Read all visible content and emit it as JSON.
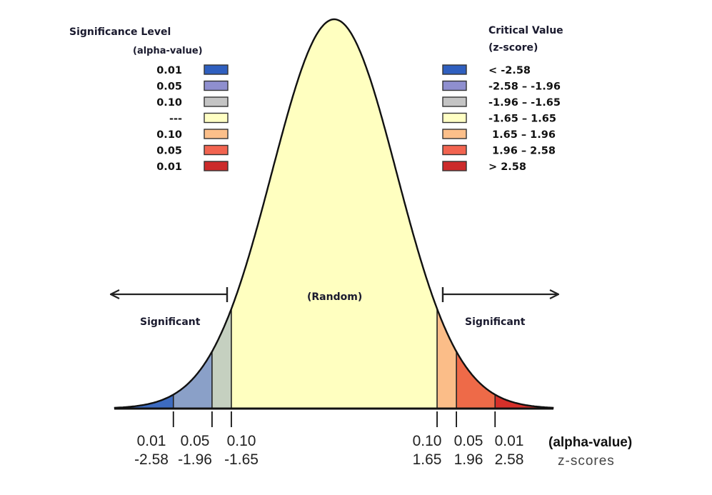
{
  "legend_left": {
    "title": "Significance Level",
    "subtitle": "(alpha-value)",
    "items": [
      {
        "label": "0.01",
        "color": "#2f5fbf"
      },
      {
        "label": "0.05",
        "color": "#8f8fcf"
      },
      {
        "label": "0.10",
        "color": "#c4c4c4"
      },
      {
        "label": "---",
        "color": "#ffffc4"
      },
      {
        "label": "0.10",
        "color": "#fcbf8a"
      },
      {
        "label": "0.05",
        "color": "#f26450"
      },
      {
        "label": "0.01",
        "color": "#cc2a2a"
      }
    ]
  },
  "legend_right": {
    "title": "Critical Value",
    "subtitle": "(z-score)",
    "items": [
      {
        "label": "< -2.58",
        "color": "#2f5fbf"
      },
      {
        "label": "-2.58 – -1.96",
        "color": "#8f8fcf"
      },
      {
        "label": "-1.96 – -1.65",
        "color": "#c4c4c4"
      },
      {
        "label": "-1.65 – 1.65",
        "color": "#ffffc4"
      },
      {
        "label": " 1.65 – 1.96",
        "color": "#fcbf8a"
      },
      {
        "label": " 1.96 – 2.58",
        "color": "#f26450"
      },
      {
        "label": "> 2.58",
        "color": "#cc2a2a"
      }
    ]
  },
  "curve": {
    "z_range": [
      -3.53,
      3.52
    ],
    "regions": [
      {
        "from": -3.53,
        "to": -2.58,
        "color": "#3d6bc0"
      },
      {
        "from": -2.58,
        "to": -1.96,
        "color": "#8aa0c8"
      },
      {
        "from": -1.96,
        "to": -1.65,
        "color": "#c5d0c0"
      },
      {
        "from": -1.65,
        "to": 1.65,
        "color": "#ffffc0"
      },
      {
        "from": 1.65,
        "to": 1.96,
        "color": "#fbbd88"
      },
      {
        "from": 1.96,
        "to": 2.58,
        "color": "#ee6a48"
      },
      {
        "from": 2.58,
        "to": 3.52,
        "color": "#d6302a"
      }
    ]
  },
  "labels": {
    "random": "(Random)",
    "significant_left": "Significant",
    "significant_right": "Significant"
  },
  "ticks": [
    {
      "z": -2.58,
      "alpha": "0.01",
      "zscore": "-2.58"
    },
    {
      "z": -1.96,
      "alpha": "0.05",
      "zscore": "-1.96"
    },
    {
      "z": -1.65,
      "alpha": "0.10",
      "zscore": "-1.65"
    },
    {
      "z": 1.65,
      "alpha": "0.10",
      "zscore": "1.65"
    },
    {
      "z": 1.96,
      "alpha": "0.05",
      "zscore": "1.96"
    },
    {
      "z": 2.58,
      "alpha": "0.01",
      "zscore": "2.58"
    }
  ],
  "axis": {
    "alpha_title": "(alpha-value)",
    "z_title": "z-scores"
  }
}
